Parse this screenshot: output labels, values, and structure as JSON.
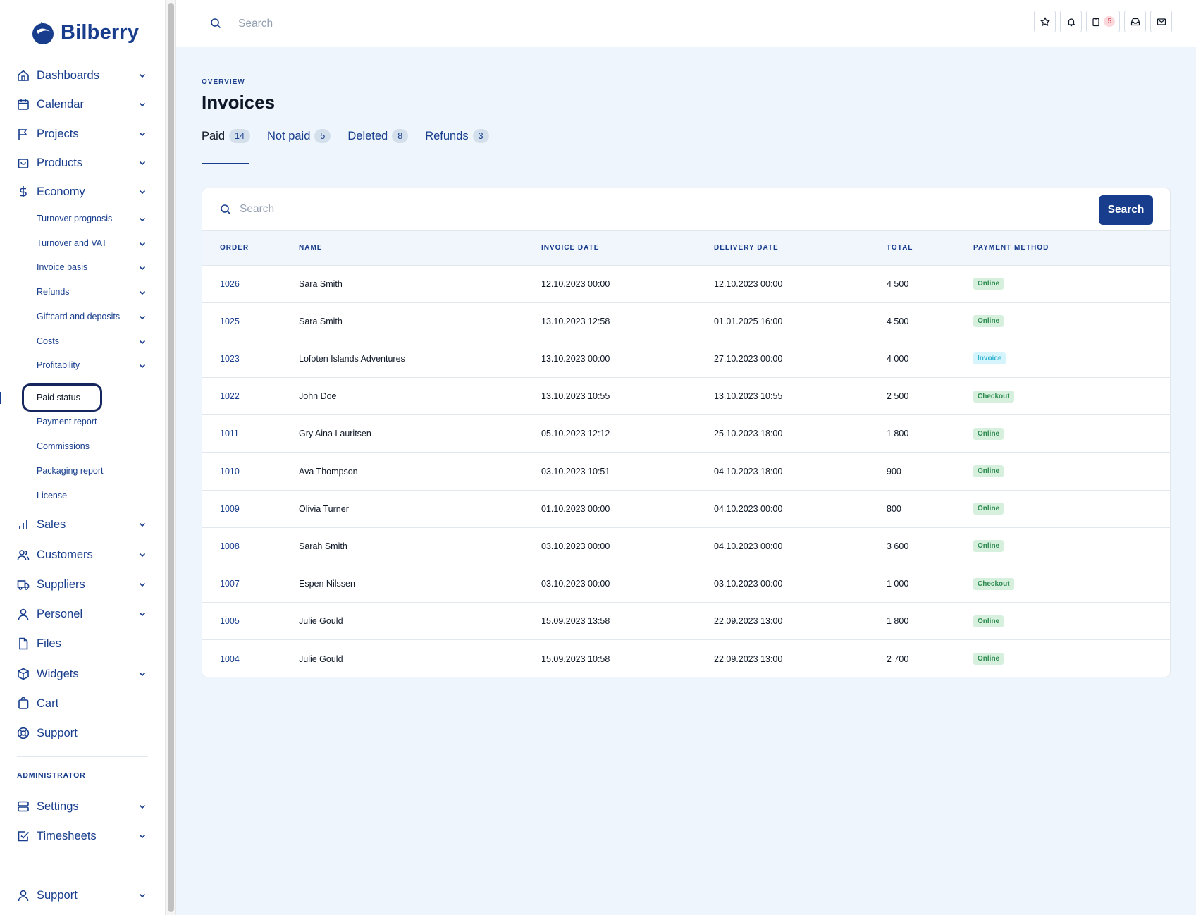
{
  "app": {
    "brand": "Bilberry"
  },
  "topbar": {
    "search_placeholder": "Search",
    "notification_count": "5"
  },
  "sidebar": {
    "items": [
      {
        "label": "Dashboards",
        "icon": "home-icon",
        "has_chevron": true
      },
      {
        "label": "Calendar",
        "icon": "calendar-icon",
        "has_chevron": true
      },
      {
        "label": "Projects",
        "icon": "flag-icon",
        "has_chevron": true
      },
      {
        "label": "Products",
        "icon": "bag-icon",
        "has_chevron": true
      },
      {
        "label": "Economy",
        "icon": "dollar-icon",
        "has_chevron": true
      }
    ],
    "economy_sub": [
      {
        "label": "Turnover prognosis",
        "has_chevron": true
      },
      {
        "label": "Turnover and VAT",
        "has_chevron": true
      },
      {
        "label": "Invoice basis",
        "has_chevron": true
      },
      {
        "label": "Refunds",
        "has_chevron": true
      },
      {
        "label": "Giftcard and deposits",
        "has_chevron": true
      },
      {
        "label": "Costs",
        "has_chevron": true
      },
      {
        "label": "Profitability",
        "has_chevron": true
      },
      {
        "label": "Paid status",
        "has_chevron": false,
        "active": true
      },
      {
        "label": "Payment report",
        "has_chevron": false
      },
      {
        "label": "Commissions",
        "has_chevron": false
      },
      {
        "label": "Packaging report",
        "has_chevron": false
      },
      {
        "label": "License",
        "has_chevron": false
      }
    ],
    "items2": [
      {
        "label": "Sales",
        "icon": "bar-chart-icon",
        "has_chevron": true
      },
      {
        "label": "Customers",
        "icon": "users-icon",
        "has_chevron": true
      },
      {
        "label": "Suppliers",
        "icon": "truck-icon",
        "has_chevron": true
      },
      {
        "label": "Personel",
        "icon": "user-icon",
        "has_chevron": true
      },
      {
        "label": "Files",
        "icon": "file-icon",
        "has_chevron": false
      },
      {
        "label": "Widgets",
        "icon": "cube-icon",
        "has_chevron": true
      },
      {
        "label": "Cart",
        "icon": "cart-icon",
        "has_chevron": false
      },
      {
        "label": "Support",
        "icon": "lifebuoy-icon",
        "has_chevron": false
      }
    ],
    "admin_title": "ADMINISTRATOR",
    "admin_items": [
      {
        "label": "Settings",
        "icon": "server-icon",
        "has_chevron": true
      },
      {
        "label": "Timesheets",
        "icon": "checkbox-icon",
        "has_chevron": true
      }
    ],
    "footer_item": {
      "label": "Support",
      "icon": "user-icon",
      "has_chevron": true
    }
  },
  "main": {
    "overline": "OVERVIEW",
    "title": "Invoices",
    "tabs": [
      {
        "label": "Paid",
        "count": "14",
        "active": true
      },
      {
        "label": "Not paid",
        "count": "5",
        "active": false
      },
      {
        "label": "Deleted",
        "count": "8",
        "active": false
      },
      {
        "label": "Refunds",
        "count": "3",
        "active": false
      }
    ],
    "search_placeholder": "Search",
    "search_button": "Search",
    "table": {
      "headers": [
        "ORDER",
        "NAME",
        "INVOICE DATE",
        "DELIVERY DATE",
        "TOTAL",
        "PAYMENT METHOD"
      ],
      "rows": [
        [
          "1026",
          "Sara Smith",
          "12.10.2023 00:00",
          "12.10.2023 00:00",
          "4 500",
          "Online"
        ],
        [
          "1025",
          "Sara Smith",
          "13.10.2023 12:58",
          "01.01.2025 16:00",
          "4 500",
          "Online"
        ],
        [
          "1023",
          "Lofoten Islands Adventures",
          "13.10.2023 00:00",
          "27.10.2023 00:00",
          "4 000",
          "Invoice"
        ],
        [
          "1022",
          "John Doe",
          "13.10.2023 10:55",
          "13.10.2023 10:55",
          "2 500",
          "Checkout"
        ],
        [
          "1011",
          "Gry Aina Lauritsen",
          "05.10.2023 12:12",
          "25.10.2023 18:00",
          "1 800",
          "Online"
        ],
        [
          "1010",
          "Ava Thompson",
          "03.10.2023 10:51",
          "04.10.2023 18:00",
          "900",
          "Online"
        ],
        [
          "1009",
          "Olivia Turner",
          "01.10.2023 00:00",
          "04.10.2023 00:00",
          "800",
          "Online"
        ],
        [
          "1008",
          "Sarah Smith",
          "03.10.2023 00:00",
          "04.10.2023 00:00",
          "3 600",
          "Online"
        ],
        [
          "1007",
          "Espen Nilssen",
          "03.10.2023 00:00",
          "03.10.2023 00:00",
          "1 000",
          "Checkout"
        ],
        [
          "1005",
          "Julie Gould",
          "15.09.2023 13:58",
          "22.09.2023 13:00",
          "1 800",
          "Online"
        ],
        [
          "1004",
          "Julie Gould",
          "15.09.2023 10:58",
          "22.09.2023 13:00",
          "2 700",
          "Online"
        ]
      ]
    }
  }
}
